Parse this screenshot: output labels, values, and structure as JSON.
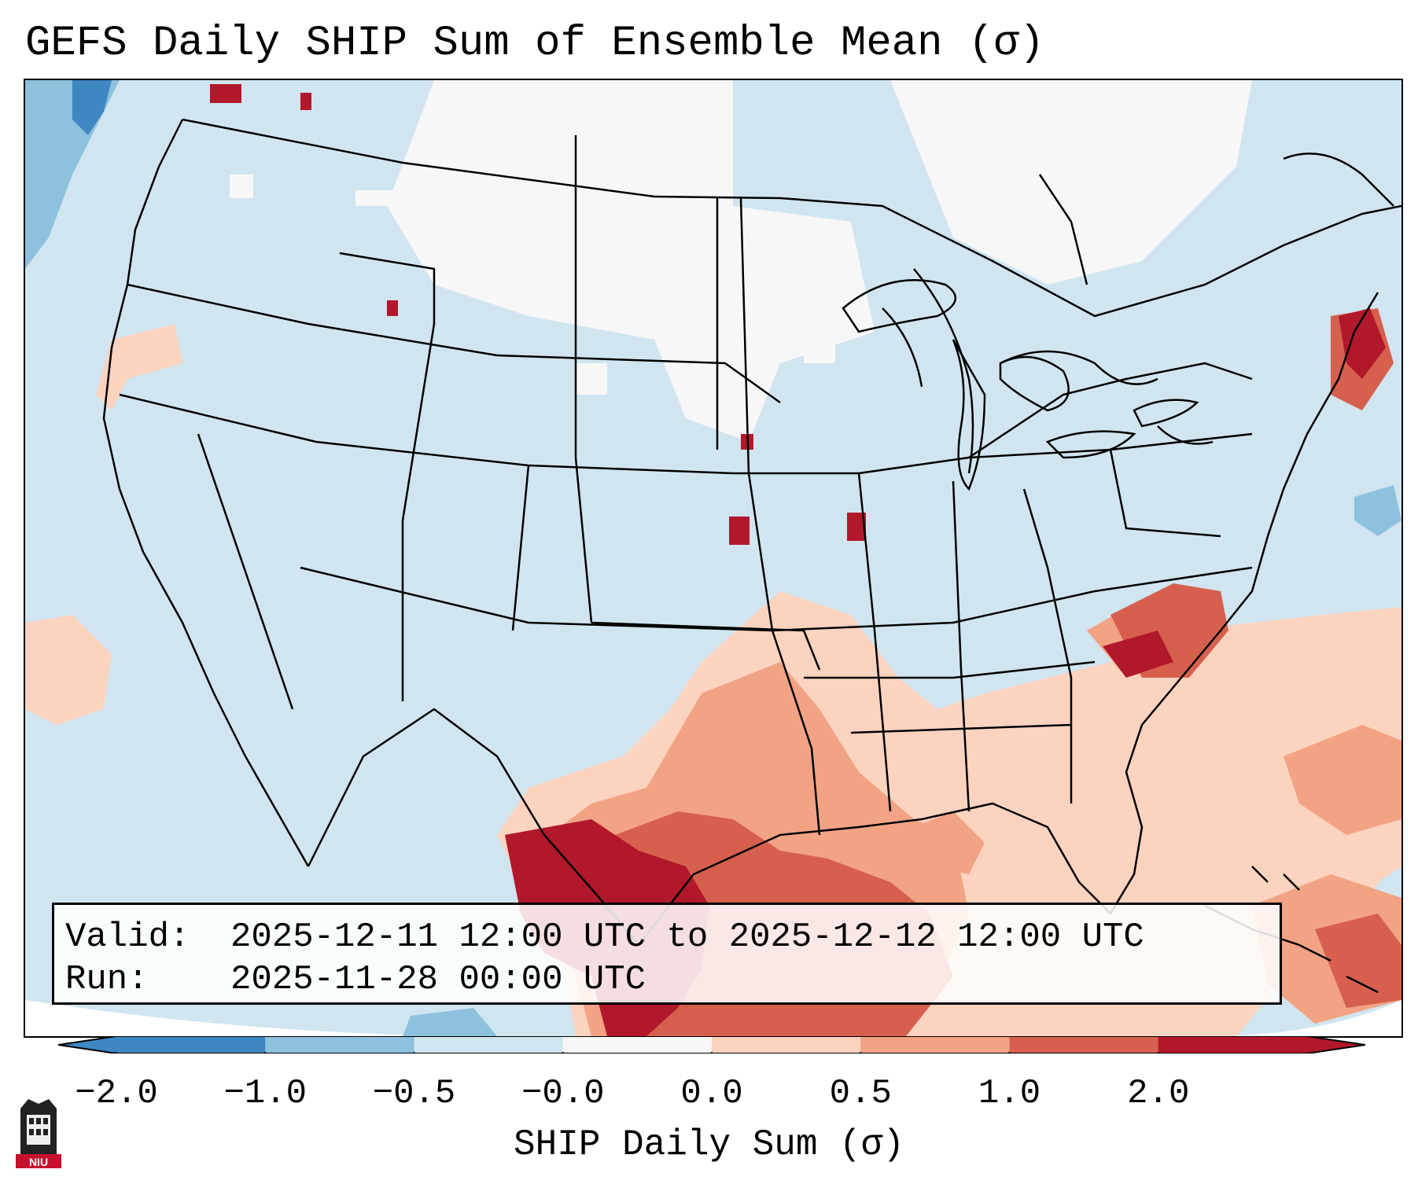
{
  "title": "GEFS Daily SHIP Sum of Ensemble Mean (σ)",
  "info": {
    "valid_key": "Valid:",
    "valid_value": "2025-12-11 12:00 UTC to 2025-12-12 12:00 UTC",
    "run_key": "Run:",
    "run_value": "2025-11-28 00:00 UTC"
  },
  "colorbar": {
    "label": "SHIP Daily Sum (σ)",
    "ticks": [
      "−2.0",
      "−1.0",
      "−0.5",
      "−0.0",
      "0.0",
      "0.5",
      "1.0",
      "2.0"
    ],
    "colors": [
      "#3f87c2",
      "#8ec1de",
      "#d1e5f0",
      "#f7f7f7",
      "#fbd3bf",
      "#f2a383",
      "#d6604d",
      "#b2182b"
    ]
  },
  "map": {
    "region": "Continental United States",
    "background_color": "#d1e5f0"
  },
  "logo": {
    "text": "NIU"
  }
}
